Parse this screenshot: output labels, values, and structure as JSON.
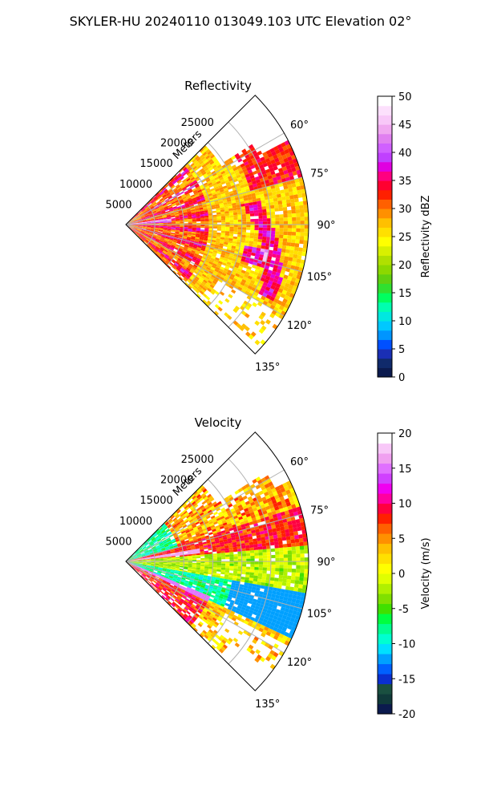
{
  "figure": {
    "title": "SKYLER-HU  20240110  013049.103 UTC Elevation 02°"
  },
  "chart_data": [
    {
      "type": "heatmap",
      "subtype": "polar-sector",
      "title": "Reflectivity",
      "range_label": "Meters",
      "range_ticks": [
        "5000",
        "10000",
        "15000",
        "20000",
        "25000"
      ],
      "range_values": [
        5000,
        10000,
        15000,
        20000,
        25000
      ],
      "max_range": 31500,
      "azimuth_ticks": [
        "60°",
        "75°",
        "90°",
        "105°",
        "120°",
        "135°"
      ],
      "azimuth_values": [
        60,
        75,
        90,
        105,
        120,
        135
      ],
      "azimuth_range": [
        45,
        135
      ],
      "grid": true,
      "colorbar": {
        "label": "Reflectivity dBZ",
        "range": [
          0,
          50
        ],
        "ticks": [
          "0",
          "5",
          "10",
          "15",
          "20",
          "25",
          "30",
          "35",
          "40",
          "45",
          "50"
        ],
        "colors": [
          "#0b1a4e",
          "#102a6b",
          "#1a2fb5",
          "#0050ff",
          "#0095ff",
          "#00c8ff",
          "#00e8e0",
          "#00ffb0",
          "#00ff60",
          "#30e030",
          "#60d010",
          "#8cd800",
          "#b0e000",
          "#d8f000",
          "#ffff00",
          "#ffe000",
          "#ffc000",
          "#ff9000",
          "#ff6000",
          "#ff2000",
          "#ff0030",
          "#ff0080",
          "#e000e0",
          "#c040ff",
          "#d060ff",
          "#e080f0",
          "#f0a8f0",
          "#f8c8f8",
          "#fce0fc",
          "#ffffff"
        ]
      },
      "echo_main_color": "#ffd400"
    },
    {
      "type": "heatmap",
      "subtype": "polar-sector",
      "title": "Velocity",
      "range_label": "Meters",
      "range_ticks": [
        "5000",
        "10000",
        "15000",
        "20000",
        "25000"
      ],
      "range_values": [
        5000,
        10000,
        15000,
        20000,
        25000
      ],
      "max_range": 31500,
      "azimuth_ticks": [
        "60°",
        "75°",
        "90°",
        "105°",
        "120°",
        "135°"
      ],
      "azimuth_values": [
        60,
        75,
        90,
        105,
        120,
        135
      ],
      "azimuth_range": [
        45,
        135
      ],
      "grid": true,
      "colorbar": {
        "label": "Velocity (m/s)",
        "range": [
          -20,
          20
        ],
        "ticks": [
          "-20",
          "-15",
          "-10",
          "-5",
          "0",
          "5",
          "10",
          "15",
          "20"
        ],
        "colors": [
          "#0b1a4e",
          "#103a3a",
          "#1a5040",
          "#0a2fd0",
          "#0060ff",
          "#00a0ff",
          "#00e0ff",
          "#00ffd0",
          "#00ff90",
          "#00ff40",
          "#40e000",
          "#80e000",
          "#b0f000",
          "#e0ff00",
          "#ffff00",
          "#ffe000",
          "#ffc000",
          "#ff9000",
          "#ff6000",
          "#ff2000",
          "#ff0040",
          "#ff00a0",
          "#f000f0",
          "#d040ff",
          "#e070ff",
          "#f0a0f0",
          "#f8c8f8",
          "#ffffff"
        ]
      }
    }
  ]
}
